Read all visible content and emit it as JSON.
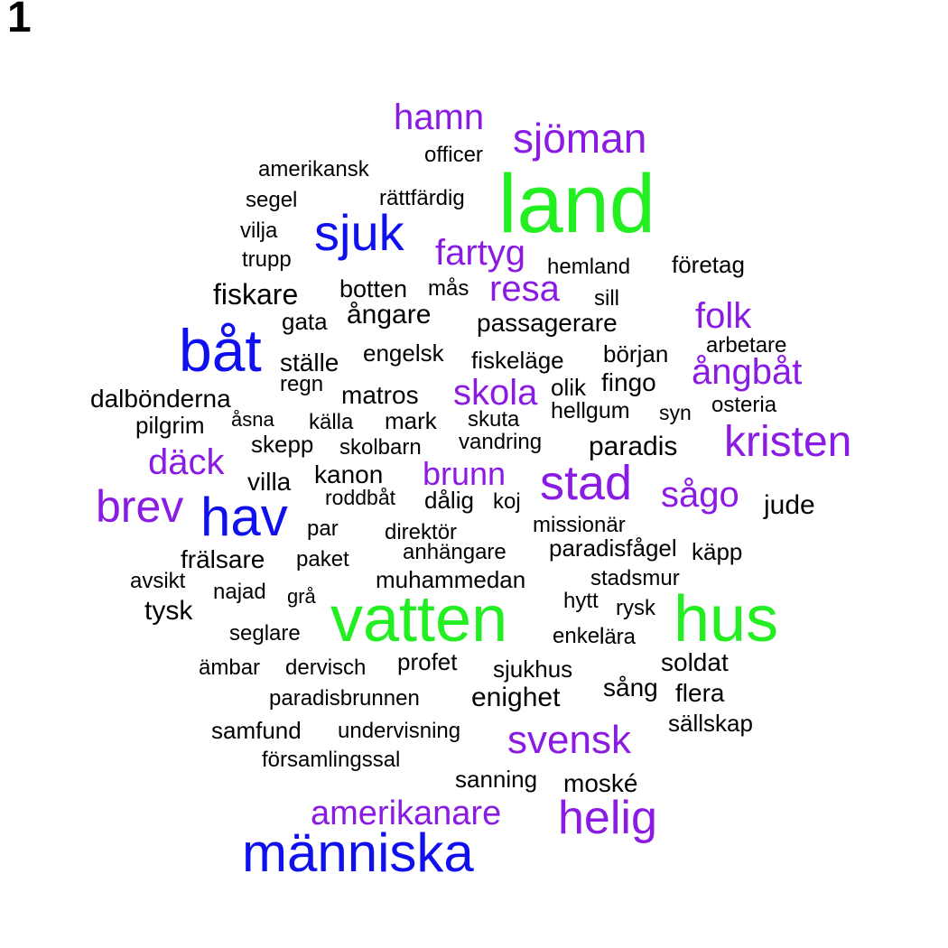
{
  "panel_label": "1",
  "colors": {
    "tier1": "#22ee22",
    "tier2": "#1010ee",
    "tier3": "#8a1be2",
    "tier4": "#000000"
  },
  "words": [
    {
      "text": "land",
      "tier": 1
    },
    {
      "text": "vatten",
      "tier": 1
    },
    {
      "text": "hus",
      "tier": 1
    },
    {
      "text": "båt",
      "tier": 2
    },
    {
      "text": "hav",
      "tier": 2
    },
    {
      "text": "sjuk",
      "tier": 2
    },
    {
      "text": "människa",
      "tier": 2
    },
    {
      "text": "hamn",
      "tier": 3
    },
    {
      "text": "sjöman",
      "tier": 3
    },
    {
      "text": "fartyg",
      "tier": 3
    },
    {
      "text": "resa",
      "tier": 3
    },
    {
      "text": "folk",
      "tier": 3
    },
    {
      "text": "ångbåt",
      "tier": 3
    },
    {
      "text": "skola",
      "tier": 3
    },
    {
      "text": "kristen",
      "tier": 3
    },
    {
      "text": "däck",
      "tier": 3
    },
    {
      "text": "brunn",
      "tier": 3
    },
    {
      "text": "stad",
      "tier": 3
    },
    {
      "text": "sågo",
      "tier": 3
    },
    {
      "text": "brev",
      "tier": 3
    },
    {
      "text": "svensk",
      "tier": 3
    },
    {
      "text": "amerikanare",
      "tier": 3
    },
    {
      "text": "helig",
      "tier": 3
    },
    {
      "text": "officer",
      "tier": 4
    },
    {
      "text": "amerikansk",
      "tier": 4
    },
    {
      "text": "segel",
      "tier": 4
    },
    {
      "text": "rättfärdig",
      "tier": 4
    },
    {
      "text": "vilja",
      "tier": 4
    },
    {
      "text": "trupp",
      "tier": 4
    },
    {
      "text": "hemland",
      "tier": 4
    },
    {
      "text": "företag",
      "tier": 4
    },
    {
      "text": "fiskare",
      "tier": 4
    },
    {
      "text": "botten",
      "tier": 4
    },
    {
      "text": "mås",
      "tier": 4
    },
    {
      "text": "sill",
      "tier": 4
    },
    {
      "text": "gata",
      "tier": 4
    },
    {
      "text": "ångare",
      "tier": 4
    },
    {
      "text": "passagerare",
      "tier": 4
    },
    {
      "text": "arbetare",
      "tier": 4
    },
    {
      "text": "ställe",
      "tier": 4
    },
    {
      "text": "engelsk",
      "tier": 4
    },
    {
      "text": "fiskeläge",
      "tier": 4
    },
    {
      "text": "början",
      "tier": 4
    },
    {
      "text": "dalbönderna",
      "tier": 4
    },
    {
      "text": "regn",
      "tier": 4
    },
    {
      "text": "matros",
      "tier": 4
    },
    {
      "text": "olik",
      "tier": 4
    },
    {
      "text": "fingo",
      "tier": 4
    },
    {
      "text": "pilgrim",
      "tier": 4
    },
    {
      "text": "åsna",
      "tier": 4
    },
    {
      "text": "källa",
      "tier": 4
    },
    {
      "text": "mark",
      "tier": 4
    },
    {
      "text": "skuta",
      "tier": 4
    },
    {
      "text": "hellgum",
      "tier": 4
    },
    {
      "text": "syn",
      "tier": 4
    },
    {
      "text": "osteria",
      "tier": 4
    },
    {
      "text": "skepp",
      "tier": 4
    },
    {
      "text": "skolbarn",
      "tier": 4
    },
    {
      "text": "vandring",
      "tier": 4
    },
    {
      "text": "paradis",
      "tier": 4
    },
    {
      "text": "villa",
      "tier": 4
    },
    {
      "text": "kanon",
      "tier": 4
    },
    {
      "text": "roddbåt",
      "tier": 4
    },
    {
      "text": "dålig",
      "tier": 4
    },
    {
      "text": "koj",
      "tier": 4
    },
    {
      "text": "jude",
      "tier": 4
    },
    {
      "text": "par",
      "tier": 4
    },
    {
      "text": "direktör",
      "tier": 4
    },
    {
      "text": "missionär",
      "tier": 4
    },
    {
      "text": "frälsare",
      "tier": 4
    },
    {
      "text": "paket",
      "tier": 4
    },
    {
      "text": "anhängare",
      "tier": 4
    },
    {
      "text": "paradisfågel",
      "tier": 4
    },
    {
      "text": "käpp",
      "tier": 4
    },
    {
      "text": "avsikt",
      "tier": 4
    },
    {
      "text": "najad",
      "tier": 4
    },
    {
      "text": "grå",
      "tier": 4
    },
    {
      "text": "muhammedan",
      "tier": 4
    },
    {
      "text": "stadsmur",
      "tier": 4
    },
    {
      "text": "tysk",
      "tier": 4
    },
    {
      "text": "hytt",
      "tier": 4
    },
    {
      "text": "rysk",
      "tier": 4
    },
    {
      "text": "seglare",
      "tier": 4
    },
    {
      "text": "enkel",
      "tier": 4
    },
    {
      "text": "lära",
      "tier": 4
    },
    {
      "text": "ämbar",
      "tier": 4
    },
    {
      "text": "dervisch",
      "tier": 4
    },
    {
      "text": "profet",
      "tier": 4
    },
    {
      "text": "sjukhus",
      "tier": 4
    },
    {
      "text": "soldat",
      "tier": 4
    },
    {
      "text": "sång",
      "tier": 4
    },
    {
      "text": "flera",
      "tier": 4
    },
    {
      "text": "paradisbrunnen",
      "tier": 4
    },
    {
      "text": "enighet",
      "tier": 4
    },
    {
      "text": "sällskap",
      "tier": 4
    },
    {
      "text": "samfund",
      "tier": 4
    },
    {
      "text": "undervisning",
      "tier": 4
    },
    {
      "text": "församlingssal",
      "tier": 4
    },
    {
      "text": "sanning",
      "tier": 4
    },
    {
      "text": "moské",
      "tier": 4
    }
  ]
}
